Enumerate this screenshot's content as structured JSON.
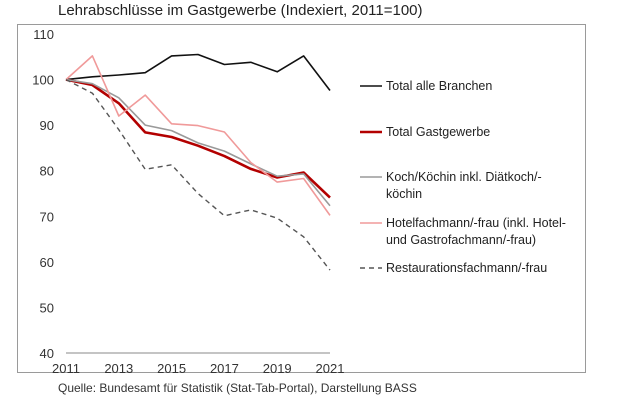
{
  "title": "Lehrabschlüsse im Gastgewerbe (Indexiert, 2011=100)",
  "source": "Quelle: Bundesamt für Statistik (Stat-Tab-Portal), Darstellung BASS",
  "chart_data": {
    "type": "line",
    "title": "Lehrabschlüsse im Gastgewerbe (Indexiert, 2011=100)",
    "xlabel": "",
    "ylabel": "",
    "x": [
      2011,
      2012,
      2013,
      2014,
      2015,
      2016,
      2017,
      2018,
      2019,
      2020,
      2021
    ],
    "xticks": [
      2011,
      2013,
      2015,
      2017,
      2019,
      2021
    ],
    "xlim": [
      2011,
      2021
    ],
    "ylim": [
      40,
      110
    ],
    "yticks": [
      40,
      50,
      60,
      70,
      80,
      90,
      100,
      110
    ],
    "grid": false,
    "legend": "right",
    "series": [
      {
        "name": "Total alle Branchen",
        "color": "#111111",
        "dash": "solid",
        "width": 1.6,
        "values": [
          100,
          100.6,
          101.0,
          101.5,
          105.2,
          105.5,
          103.3,
          103.8,
          101.7,
          105.2,
          97.6
        ]
      },
      {
        "name": "Total Gastgewerbe",
        "color": "#b30000",
        "dash": "solid",
        "width": 2.6,
        "values": [
          100,
          98.8,
          94.8,
          88.4,
          87.4,
          85.5,
          83.2,
          80.4,
          78.5,
          79.6,
          74.1
        ]
      },
      {
        "name": "Koch/Köchin inkl. Diätkoch/-köchin",
        "color": "#9a9a9a",
        "dash": "solid",
        "width": 1.6,
        "values": [
          100,
          99.1,
          96.0,
          90.0,
          88.8,
          86.1,
          84.3,
          81.5,
          78.8,
          79.3,
          72.3
        ]
      },
      {
        "name": "Hotelfachmann/-frau (inkl. Hotel- und Gastrofachmann/-frau)",
        "color": "#f09a9a",
        "dash": "solid",
        "width": 1.6,
        "values": [
          100,
          105.2,
          92.0,
          96.6,
          90.3,
          89.9,
          88.5,
          81.8,
          77.5,
          78.3,
          70.2
        ]
      },
      {
        "name": "Restaurationsfachmann/-frau",
        "color": "#555555",
        "dash": "dashed",
        "width": 1.4,
        "values": [
          100,
          97.0,
          89.0,
          80.3,
          81.3,
          75.0,
          70.1,
          71.4,
          69.6,
          65.5,
          58.2
        ]
      }
    ],
    "legend_entries": [
      {
        "lines": [
          "Total alle Branchen"
        ]
      },
      {
        "lines": [
          "Total Gastgewerbe"
        ]
      },
      {
        "lines": [
          "Koch/Köchin inkl. Diätkoch/-",
          "köchin"
        ]
      },
      {
        "lines": [
          "Hotelfachmann/-frau (inkl. Hotel-",
          "und Gastrofachmann/-frau)"
        ]
      },
      {
        "lines": [
          "Restaurationsfachmann/-frau"
        ]
      }
    ]
  }
}
